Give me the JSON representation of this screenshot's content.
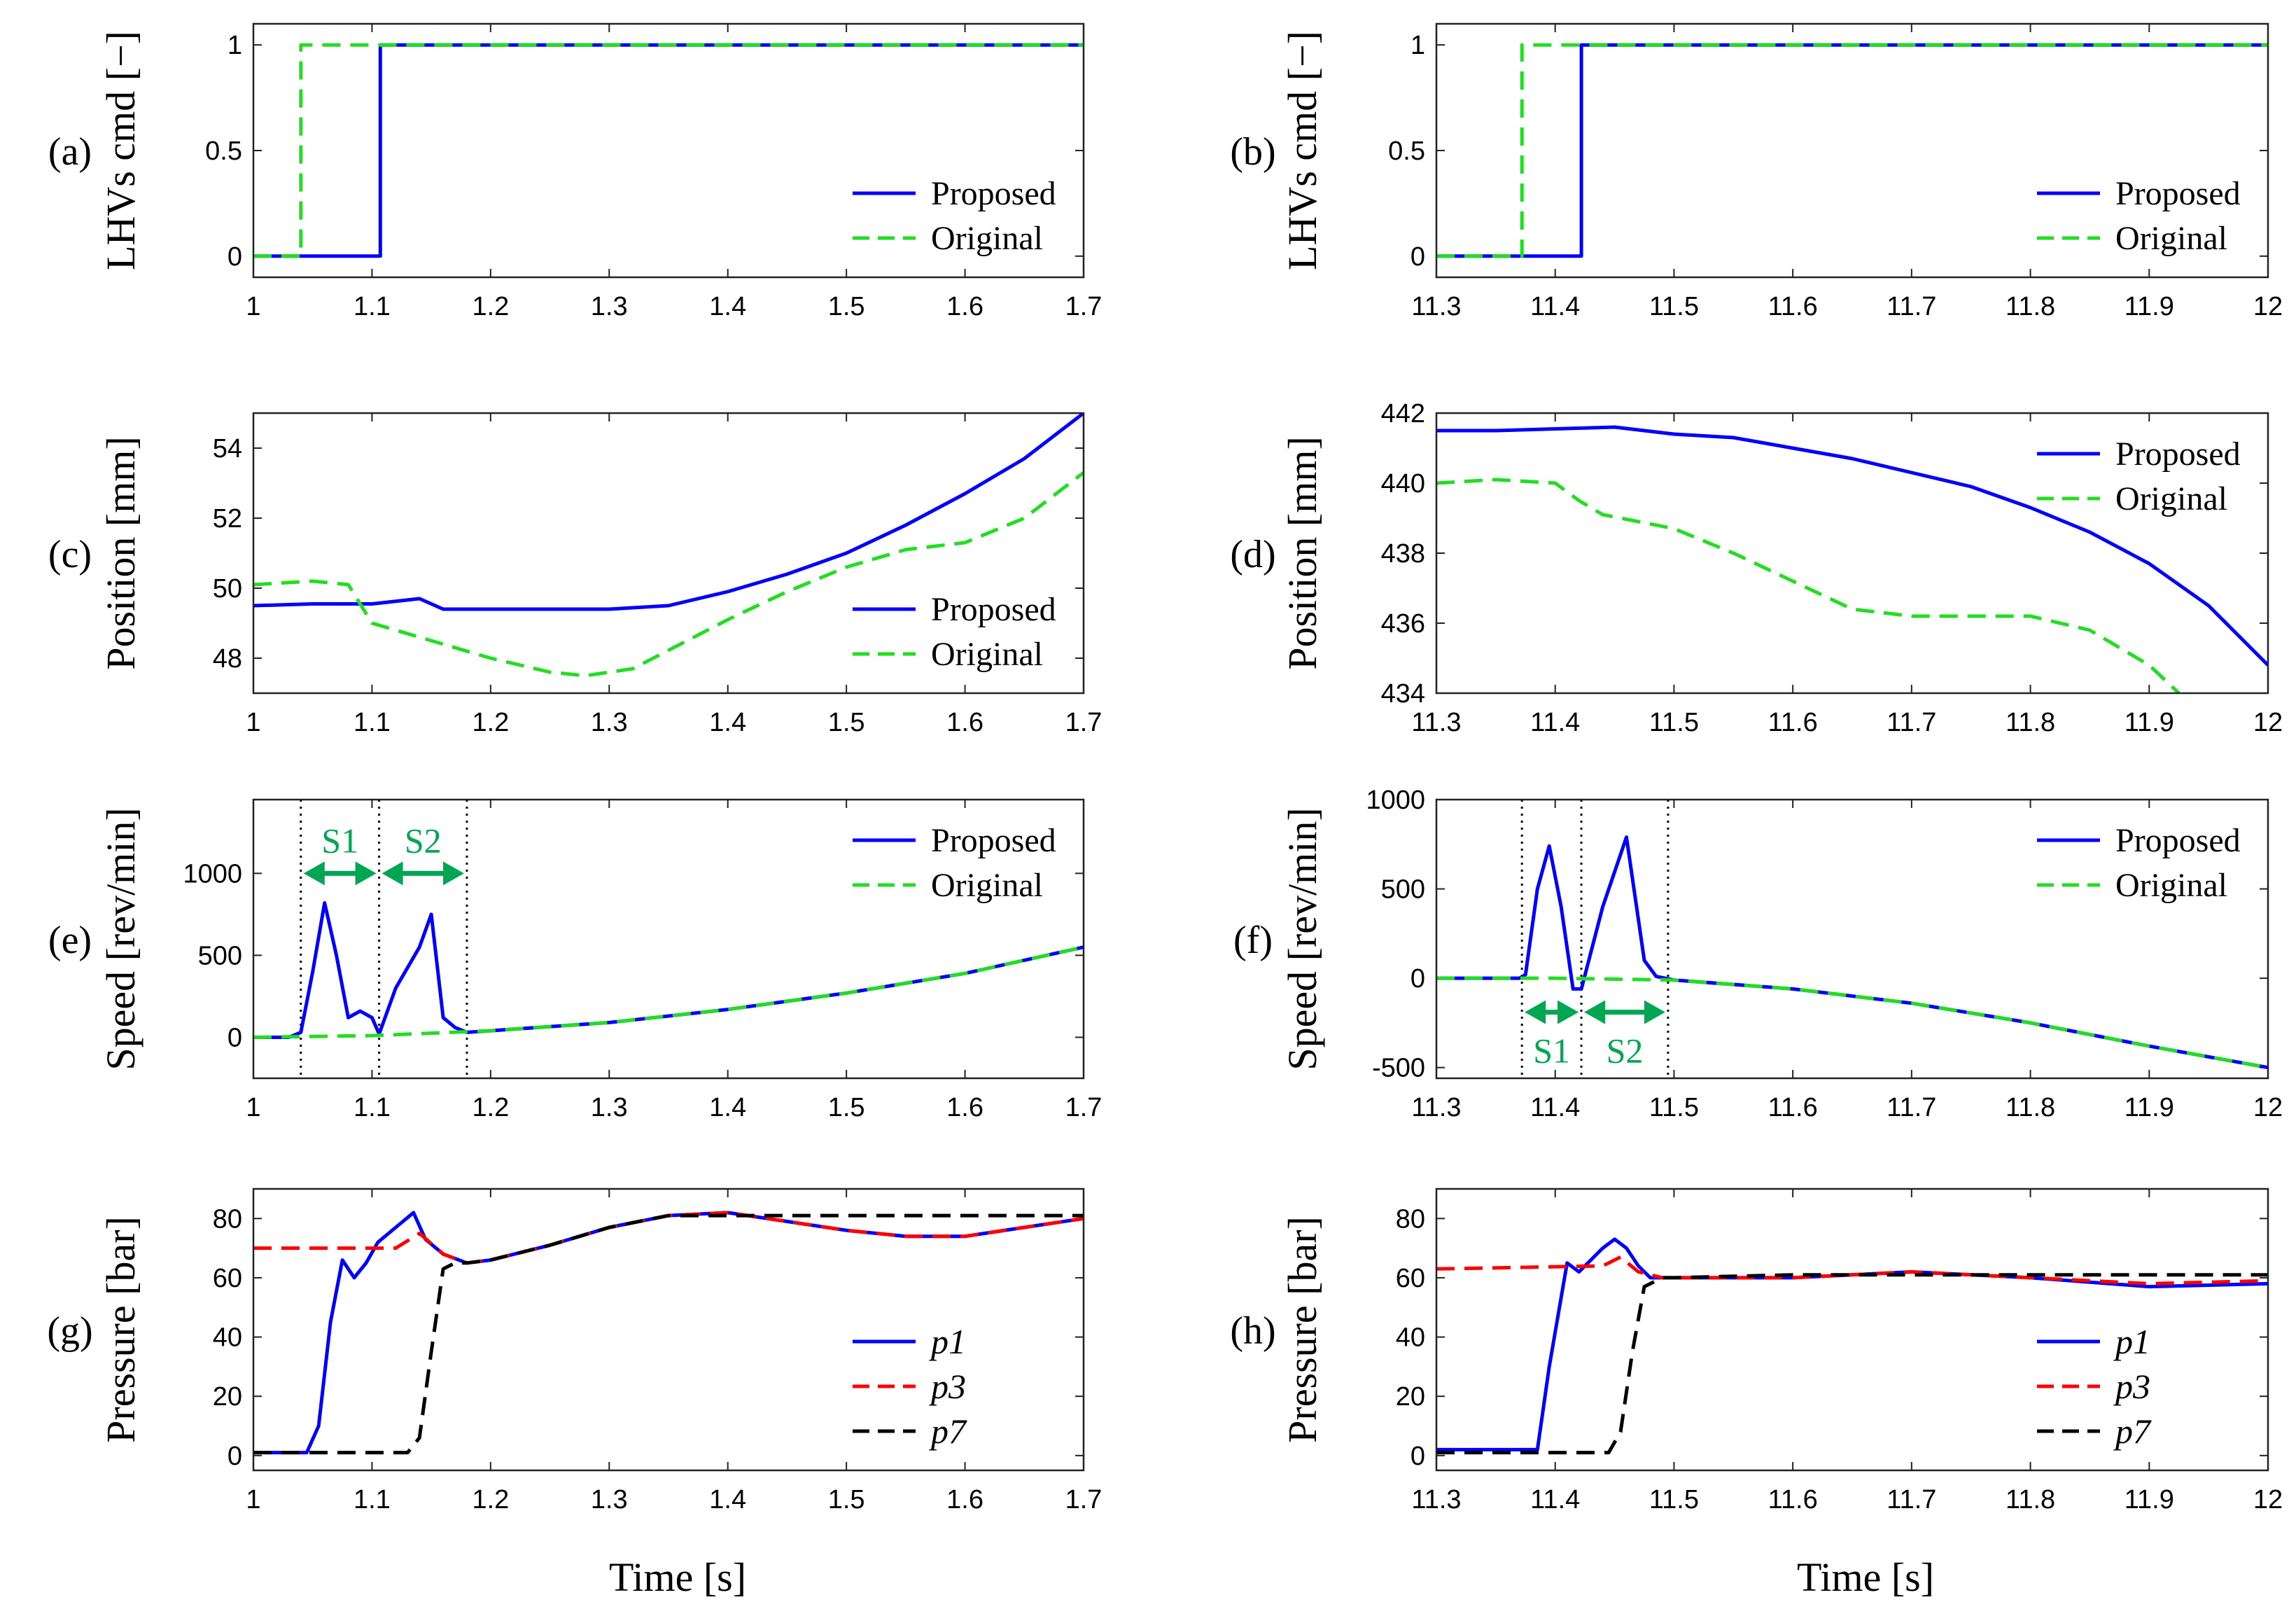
{
  "figure": {
    "xlabel": "Time [s]",
    "colors": {
      "proposed": "#0000ff",
      "original": "#22dd22",
      "p1": "#0000ff",
      "p3": "#ff0000",
      "p7": "#000000",
      "annotation": "#00a651"
    }
  },
  "chart_data": [
    {
      "id": "a",
      "tag": "(a)",
      "type": "line",
      "ylabel": "LHVs cmd [−]",
      "xlim": [
        1,
        1.7
      ],
      "ylim": [
        -0.1,
        1.1
      ],
      "xticks": [
        1,
        1.1,
        1.2,
        1.3,
        1.4,
        1.5,
        1.6,
        1.7
      ],
      "xtick_labels": [
        "1",
        "1.1",
        "1.2",
        "1.3",
        "1.4",
        "1.5",
        "1.6",
        "1.7"
      ],
      "yticks": [
        0,
        0.5,
        1
      ],
      "ytick_labels": [
        "0",
        "0.5",
        "1"
      ],
      "legend": "right-lower",
      "series": [
        {
          "name": "Proposed",
          "style": "solid",
          "color": "#0000ff",
          "x": [
            1,
            1.107,
            1.107,
            1.7
          ],
          "y": [
            0,
            0,
            1,
            1
          ]
        },
        {
          "name": "Original",
          "style": "dashed",
          "color": "#22dd22",
          "x": [
            1,
            1.04,
            1.04,
            1.7
          ],
          "y": [
            0,
            0,
            1,
            1
          ]
        }
      ]
    },
    {
      "id": "b",
      "tag": "(b)",
      "type": "line",
      "ylabel": "LHVs cmd [−]",
      "xlim": [
        11.3,
        12
      ],
      "ylim": [
        -0.1,
        1.1
      ],
      "xticks": [
        11.3,
        11.4,
        11.5,
        11.6,
        11.7,
        11.8,
        11.9,
        12
      ],
      "xtick_labels": [
        "11.3",
        "11.4",
        "11.5",
        "11.6",
        "11.7",
        "11.8",
        "11.9",
        "12"
      ],
      "yticks": [
        0,
        0.5,
        1
      ],
      "ytick_labels": [
        "0",
        "0.5",
        "1"
      ],
      "legend": "right-lower",
      "series": [
        {
          "name": "Proposed",
          "style": "solid",
          "color": "#0000ff",
          "x": [
            11.3,
            11.422,
            11.422,
            12
          ],
          "y": [
            0,
            0,
            1,
            1
          ]
        },
        {
          "name": "Original",
          "style": "dashed",
          "color": "#22dd22",
          "x": [
            11.3,
            11.372,
            11.372,
            12
          ],
          "y": [
            0,
            0,
            1,
            1
          ]
        }
      ]
    },
    {
      "id": "c",
      "tag": "(c)",
      "type": "line",
      "ylabel": "Position [mm]",
      "xlim": [
        1,
        1.7
      ],
      "ylim": [
        47,
        55
      ],
      "xticks": [
        1,
        1.1,
        1.2,
        1.3,
        1.4,
        1.5,
        1.6,
        1.7
      ],
      "xtick_labels": [
        "1",
        "1.1",
        "1.2",
        "1.3",
        "1.4",
        "1.5",
        "1.6",
        "1.7"
      ],
      "yticks": [
        48,
        50,
        52,
        54
      ],
      "ytick_labels": [
        "48",
        "50",
        "52",
        "54"
      ],
      "legend": "right-lower",
      "series": [
        {
          "name": "Proposed",
          "style": "solid",
          "color": "#0000ff",
          "x": [
            1,
            1.05,
            1.1,
            1.14,
            1.16,
            1.2,
            1.25,
            1.3,
            1.35,
            1.4,
            1.45,
            1.5,
            1.55,
            1.6,
            1.65,
            1.7
          ],
          "y": [
            49.5,
            49.55,
            49.55,
            49.7,
            49.4,
            49.4,
            49.4,
            49.4,
            49.5,
            49.9,
            50.4,
            51.0,
            51.8,
            52.7,
            53.7,
            55.0
          ]
        },
        {
          "name": "Original",
          "style": "dashed",
          "color": "#22dd22",
          "x": [
            1,
            1.05,
            1.08,
            1.1,
            1.15,
            1.2,
            1.25,
            1.28,
            1.32,
            1.36,
            1.4,
            1.45,
            1.5,
            1.55,
            1.6,
            1.65,
            1.7
          ],
          "y": [
            50.1,
            50.2,
            50.1,
            49.0,
            48.5,
            48.0,
            47.6,
            47.5,
            47.7,
            48.4,
            49.1,
            49.9,
            50.6,
            51.1,
            51.3,
            52.0,
            53.3
          ]
        }
      ]
    },
    {
      "id": "d",
      "tag": "(d)",
      "type": "line",
      "ylabel": "Position [mm]",
      "xlim": [
        11.3,
        12
      ],
      "ylim": [
        434,
        442
      ],
      "xticks": [
        11.3,
        11.4,
        11.5,
        11.6,
        11.7,
        11.8,
        11.9,
        12
      ],
      "xtick_labels": [
        "11.3",
        "11.4",
        "11.5",
        "11.6",
        "11.7",
        "11.8",
        "11.9",
        "12"
      ],
      "yticks": [
        434,
        436,
        438,
        440,
        442
      ],
      "ytick_labels": [
        "434",
        "436",
        "438",
        "440",
        "442"
      ],
      "legend": "top-right",
      "series": [
        {
          "name": "Proposed",
          "style": "solid",
          "color": "#0000ff",
          "x": [
            11.3,
            11.35,
            11.4,
            11.45,
            11.5,
            11.55,
            11.6,
            11.65,
            11.7,
            11.75,
            11.8,
            11.85,
            11.9,
            11.95,
            12
          ],
          "y": [
            441.5,
            441.5,
            441.55,
            441.6,
            441.4,
            441.3,
            441.0,
            440.7,
            440.3,
            439.9,
            439.3,
            438.6,
            437.7,
            436.5,
            434.8
          ]
        },
        {
          "name": "Original",
          "style": "dashed",
          "color": "#22dd22",
          "x": [
            11.3,
            11.35,
            11.4,
            11.42,
            11.44,
            11.5,
            11.55,
            11.6,
            11.65,
            11.7,
            11.75,
            11.8,
            11.85,
            11.9,
            11.925
          ],
          "y": [
            440.0,
            440.1,
            440.0,
            439.5,
            439.1,
            438.7,
            438.0,
            437.2,
            436.4,
            436.2,
            436.2,
            436.2,
            435.8,
            434.8,
            434.0
          ]
        }
      ]
    },
    {
      "id": "e",
      "tag": "(e)",
      "type": "line",
      "ylabel": "Speed [rev/min]",
      "xlim": [
        1,
        1.7
      ],
      "ylim": [
        -250,
        1450
      ],
      "xticks": [
        1,
        1.1,
        1.2,
        1.3,
        1.4,
        1.5,
        1.6,
        1.7
      ],
      "xtick_labels": [
        "1",
        "1.1",
        "1.2",
        "1.3",
        "1.4",
        "1.5",
        "1.6",
        "1.7"
      ],
      "yticks": [
        0,
        500,
        1000
      ],
      "ytick_labels": [
        "0",
        "500",
        "1000"
      ],
      "legend": "top-right",
      "series": [
        {
          "name": "Proposed",
          "style": "solid",
          "color": "#0000ff",
          "x": [
            1,
            1.03,
            1.04,
            1.05,
            1.06,
            1.07,
            1.08,
            1.09,
            1.1,
            1.106,
            1.12,
            1.14,
            1.15,
            1.16,
            1.17,
            1.18,
            1.2,
            1.3,
            1.4,
            1.5,
            1.6,
            1.7
          ],
          "y": [
            0,
            0,
            30,
            400,
            820,
            500,
            120,
            160,
            120,
            20,
            300,
            550,
            750,
            120,
            60,
            30,
            40,
            90,
            170,
            270,
            390,
            550
          ]
        },
        {
          "name": "Original",
          "style": "dashed",
          "color": "#22dd22",
          "x": [
            1,
            1.1,
            1.2,
            1.3,
            1.4,
            1.5,
            1.6,
            1.7
          ],
          "y": [
            0,
            10,
            40,
            90,
            170,
            270,
            390,
            550
          ]
        }
      ],
      "vlines": [
        1.04,
        1.106,
        1.18
      ],
      "annotations": [
        {
          "label": "S1",
          "x0": 1.04,
          "x1": 1.106,
          "y": 1000
        },
        {
          "label": "S2",
          "x0": 1.106,
          "x1": 1.18,
          "y": 1000
        }
      ]
    },
    {
      "id": "f",
      "tag": "(f)",
      "type": "line",
      "ylabel": "Speed [rev/min]",
      "xlim": [
        11.3,
        12
      ],
      "ylim": [
        -560,
        1000
      ],
      "xticks": [
        11.3,
        11.4,
        11.5,
        11.6,
        11.7,
        11.8,
        11.9,
        12
      ],
      "xtick_labels": [
        "11.3",
        "11.4",
        "11.5",
        "11.6",
        "11.7",
        "11.8",
        "11.9",
        "12"
      ],
      "yticks": [
        -500,
        0,
        500,
        1000
      ],
      "ytick_labels": [
        "-500",
        "0",
        "500",
        "1000"
      ],
      "legend": "top-right",
      "series": [
        {
          "name": "Proposed",
          "style": "solid",
          "color": "#0000ff",
          "x": [
            11.3,
            11.37,
            11.375,
            11.385,
            11.395,
            11.405,
            11.415,
            11.422,
            11.44,
            11.46,
            11.475,
            11.485,
            11.5,
            11.6,
            11.7,
            11.8,
            11.9,
            12
          ],
          "y": [
            0,
            0,
            20,
            500,
            740,
            400,
            -60,
            -60,
            400,
            790,
            100,
            10,
            -10,
            -60,
            -140,
            -250,
            -380,
            -500
          ]
        },
        {
          "name": "Original",
          "style": "dashed",
          "color": "#22dd22",
          "x": [
            11.3,
            11.4,
            11.5,
            11.6,
            11.7,
            11.8,
            11.9,
            12
          ],
          "y": [
            0,
            0,
            -10,
            -60,
            -140,
            -250,
            -380,
            -500
          ]
        }
      ],
      "vlines": [
        11.372,
        11.422,
        11.495
      ],
      "annotations": [
        {
          "label": "S1",
          "x0": 11.372,
          "x1": 11.422,
          "y": -190
        },
        {
          "label": "S2",
          "x0": 11.422,
          "x1": 11.495,
          "y": -190
        }
      ]
    },
    {
      "id": "g",
      "tag": "(g)",
      "type": "line",
      "ylabel": "Pressure [bar]",
      "xlim": [
        1,
        1.7
      ],
      "ylim": [
        -5,
        90
      ],
      "xticks": [
        1,
        1.1,
        1.2,
        1.3,
        1.4,
        1.5,
        1.6,
        1.7
      ],
      "xtick_labels": [
        "1",
        "1.1",
        "1.2",
        "1.3",
        "1.4",
        "1.5",
        "1.6",
        "1.7"
      ],
      "yticks": [
        0,
        20,
        40,
        60,
        80
      ],
      "ytick_labels": [
        "0",
        "20",
        "40",
        "60",
        "80"
      ],
      "legend": "right-lower",
      "series": [
        {
          "name": "p1",
          "sub": "1",
          "style": "solid",
          "color": "#0000ff",
          "x": [
            1,
            1.045,
            1.055,
            1.065,
            1.075,
            1.085,
            1.095,
            1.105,
            1.12,
            1.135,
            1.145,
            1.16,
            1.18,
            1.2,
            1.25,
            1.3,
            1.35,
            1.4,
            1.45,
            1.5,
            1.55,
            1.6,
            1.65,
            1.7
          ],
          "y": [
            1,
            1,
            10,
            45,
            66,
            60,
            65,
            72,
            77,
            82,
            73,
            68,
            65,
            66,
            71,
            77,
            81,
            82,
            79,
            76,
            74,
            74,
            77,
            80
          ]
        },
        {
          "name": "p3",
          "sub": "3",
          "style": "dashed",
          "color": "#ff0000",
          "x": [
            1,
            1.12,
            1.14,
            1.16,
            1.18,
            1.2,
            1.25,
            1.3,
            1.35,
            1.4,
            1.45,
            1.5,
            1.55,
            1.6,
            1.65,
            1.7
          ],
          "y": [
            70,
            70,
            75,
            68,
            65,
            66,
            71,
            77,
            81,
            82,
            79,
            76,
            74,
            74,
            77,
            80
          ]
        },
        {
          "name": "p7",
          "sub": "7",
          "style": "dashed",
          "color": "#000000",
          "x": [
            1,
            1.13,
            1.14,
            1.15,
            1.16,
            1.17,
            1.18,
            1.2,
            1.25,
            1.3,
            1.35,
            1.4,
            1.45,
            1.5,
            1.55,
            1.6,
            1.65,
            1.7
          ],
          "y": [
            1,
            1,
            6,
            35,
            63,
            65,
            65,
            66,
            71,
            77,
            81,
            81,
            81,
            81,
            81,
            81,
            81,
            81
          ]
        }
      ]
    },
    {
      "id": "h",
      "tag": "(h)",
      "type": "line",
      "ylabel": "Pressure [bar]",
      "xlim": [
        11.3,
        12
      ],
      "ylim": [
        -5,
        90
      ],
      "xticks": [
        11.3,
        11.4,
        11.5,
        11.6,
        11.7,
        11.8,
        11.9,
        12
      ],
      "xtick_labels": [
        "11.3",
        "11.4",
        "11.5",
        "11.6",
        "11.7",
        "11.8",
        "11.9",
        "12"
      ],
      "yticks": [
        0,
        20,
        40,
        60,
        80
      ],
      "ytick_labels": [
        "0",
        "20",
        "40",
        "60",
        "80"
      ],
      "legend": "right-lower",
      "series": [
        {
          "name": "p1",
          "sub": "1",
          "style": "solid",
          "color": "#0000ff",
          "x": [
            11.3,
            11.385,
            11.395,
            11.41,
            11.42,
            11.43,
            11.44,
            11.45,
            11.46,
            11.47,
            11.48,
            11.5,
            11.6,
            11.7,
            11.8,
            11.9,
            12
          ],
          "y": [
            2,
            2,
            30,
            65,
            62,
            66,
            70,
            73,
            70,
            64,
            60,
            60,
            60,
            62,
            60,
            57,
            58
          ]
        },
        {
          "name": "p3",
          "sub": "3",
          "style": "dashed",
          "color": "#ff0000",
          "x": [
            11.3,
            11.44,
            11.455,
            11.47,
            11.49,
            11.5,
            11.6,
            11.7,
            11.8,
            11.9,
            12
          ],
          "y": [
            63,
            64,
            67,
            62,
            60,
            60,
            60,
            62,
            60,
            58,
            59
          ]
        },
        {
          "name": "p7",
          "sub": "7",
          "style": "dashed",
          "color": "#000000",
          "x": [
            11.3,
            11.445,
            11.455,
            11.465,
            11.475,
            11.49,
            11.5,
            11.6,
            11.7,
            11.8,
            11.9,
            12
          ],
          "y": [
            1,
            1,
            8,
            35,
            57,
            60,
            60,
            61,
            61,
            61,
            61,
            61
          ]
        }
      ]
    }
  ]
}
